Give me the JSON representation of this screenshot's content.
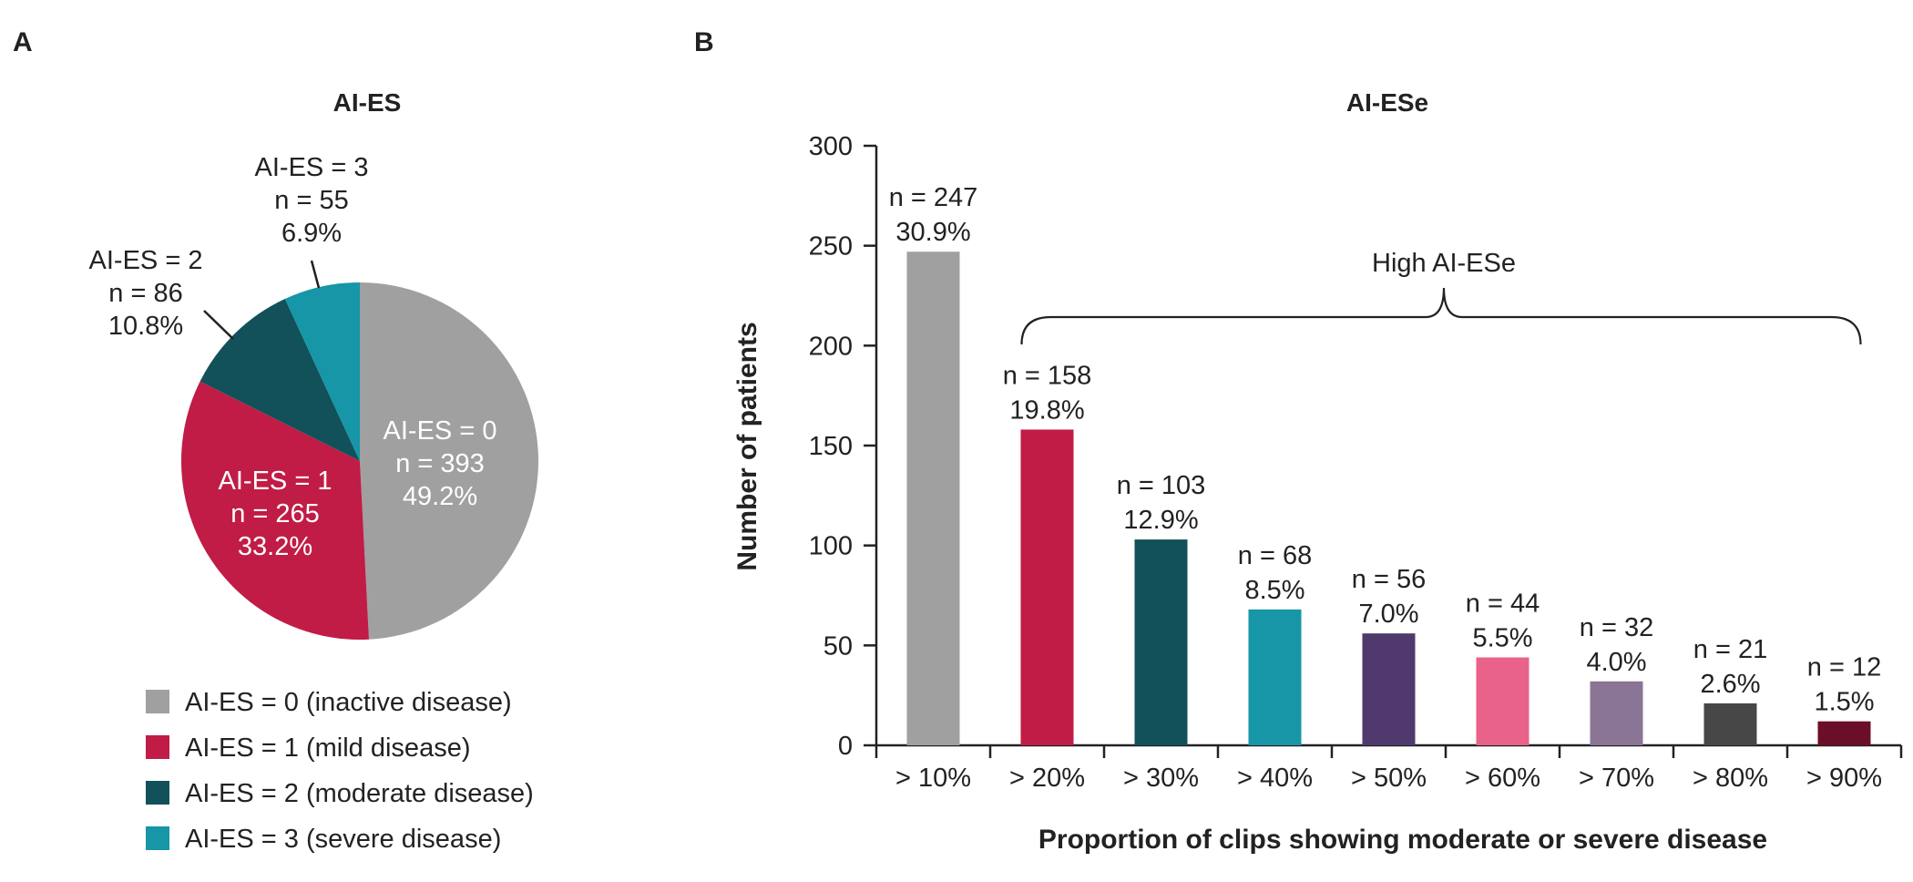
{
  "panels": {
    "a_label": "A",
    "b_label": "B"
  },
  "colors": {
    "gray": "#a0a0a0",
    "crimson": "#c01c46",
    "dark_teal": "#12515a",
    "teal": "#1696a7",
    "purple": "#4f396d",
    "pink": "#e8628a",
    "mauve": "#8a7595",
    "dark_gray": "#474747",
    "maroon": "#6b0f28"
  },
  "chart_data": [
    {
      "type": "pie",
      "title": "AI-ES",
      "slices": [
        {
          "label": "AI-ES = 0",
          "n_text": "n = 393",
          "pct_text": "49.2%",
          "value": 393,
          "percent": 49.2,
          "color": "#a0a0a0",
          "legend": "AI-ES = 0 (inactive disease)"
        },
        {
          "label": "AI-ES = 1",
          "n_text": "n = 265",
          "pct_text": "33.2%",
          "value": 265,
          "percent": 33.2,
          "color": "#c01c46",
          "legend": "AI-ES = 1 (mild disease)"
        },
        {
          "label": "AI-ES = 2",
          "n_text": "n = 86",
          "pct_text": "10.8%",
          "value": 86,
          "percent": 10.8,
          "color": "#12515a",
          "legend": "AI-ES = 2 (moderate disease)"
        },
        {
          "label": "AI-ES = 3",
          "n_text": "n = 55",
          "pct_text": "6.9%",
          "value": 55,
          "percent": 6.9,
          "color": "#1696a7",
          "legend": "AI-ES = 3 (severe disease)"
        }
      ],
      "legend_placement": "bottom"
    },
    {
      "type": "bar",
      "title": "AI-ESe",
      "xlabel": "Proportion of clips showing moderate or severe disease",
      "ylabel": "Number of patients",
      "ylim": [
        0,
        300
      ],
      "yticks": [
        0,
        50,
        100,
        150,
        200,
        250,
        300
      ],
      "grid": false,
      "categories": [
        "> 10%",
        "> 20%",
        "> 30%",
        "> 40%",
        "> 50%",
        "> 60%",
        "> 70%",
        "> 80%",
        "> 90%"
      ],
      "values": [
        247,
        158,
        103,
        68,
        56,
        44,
        32,
        21,
        12
      ],
      "n_labels": [
        "n = 247",
        "n = 158",
        "n = 103",
        "n = 68",
        "n = 56",
        "n = 44",
        "n = 32",
        "n = 21",
        "n = 12"
      ],
      "pct_labels": [
        "30.9%",
        "19.8%",
        "12.9%",
        "8.5%",
        "7.0%",
        "5.5%",
        "4.0%",
        "2.6%",
        "1.5%"
      ],
      "bar_colors": [
        "#a0a0a0",
        "#c01c46",
        "#12515a",
        "#1696a7",
        "#4f396d",
        "#e8628a",
        "#8a7595",
        "#474747",
        "#6b0f28"
      ],
      "annotation": {
        "text": "High AI-ESe",
        "from_category": "> 20%",
        "to_category": "> 90%"
      }
    }
  ]
}
